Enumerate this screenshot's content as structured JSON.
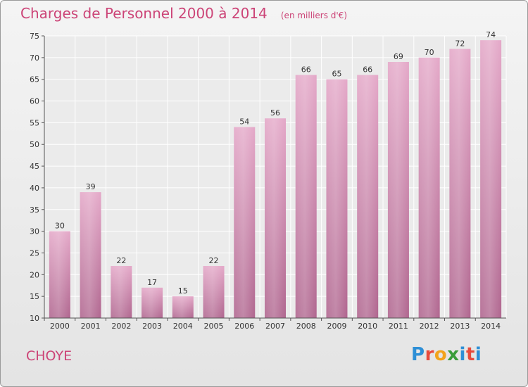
{
  "header": {
    "title": "Charges de Personnel 2000 à 2014",
    "subtitle": "(en milliers d'€)"
  },
  "footer": {
    "commune": "CHOYE",
    "logo": {
      "text": "Proxiti",
      "letter_colors": [
        "#2e8fd6",
        "#e84a3c",
        "#f2a31b",
        "#3a9c3a",
        "#2e8fd6",
        "#e84a3c",
        "#2e8fd6"
      ]
    }
  },
  "chart_data": {
    "type": "bar",
    "categories": [
      "2000",
      "2001",
      "2002",
      "2003",
      "2004",
      "2005",
      "2006",
      "2007",
      "2008",
      "2009",
      "2010",
      "2011",
      "2012",
      "2013",
      "2014"
    ],
    "values": [
      30,
      39,
      22,
      17,
      15,
      22,
      54,
      56,
      66,
      65,
      66,
      69,
      70,
      72,
      74
    ],
    "title": "Charges de Personnel 2000 à 2014",
    "subtitle": "(en milliers d'€)",
    "xlabel": "",
    "ylabel": "",
    "ylim": [
      10,
      75
    ],
    "yticks": [
      10,
      15,
      20,
      25,
      30,
      35,
      40,
      45,
      50,
      55,
      60,
      65,
      70,
      75
    ],
    "grid": true,
    "bar_color": "#d98fb5",
    "data_labels": true
  }
}
